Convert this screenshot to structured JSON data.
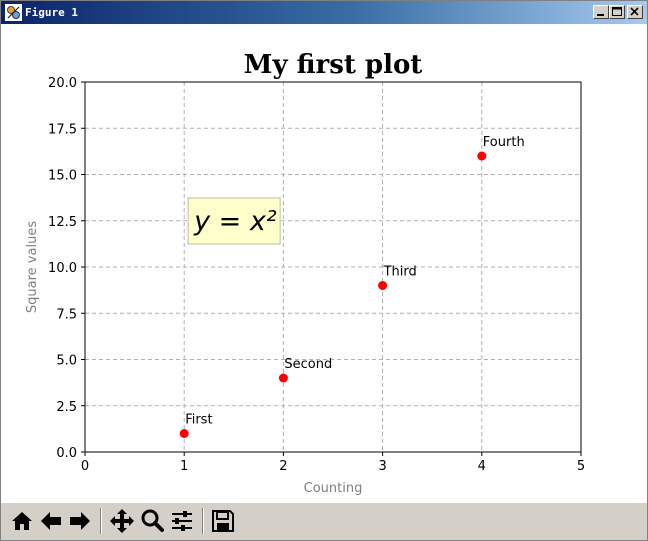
{
  "window": {
    "title": "Figure 1",
    "buttons": [
      "minimize",
      "maximize",
      "close"
    ]
  },
  "chart_data": {
    "type": "scatter",
    "title": "My first plot",
    "xlabel": "Counting",
    "ylabel": "Square values",
    "xlim": [
      0,
      5
    ],
    "ylim": [
      0,
      20
    ],
    "xticks": [
      "0",
      "1",
      "2",
      "3",
      "4",
      "5"
    ],
    "yticks": [
      "0.0",
      "2.5",
      "5.0",
      "7.5",
      "10.0",
      "12.5",
      "15.0",
      "17.5",
      "20.0"
    ],
    "grid": true,
    "points": [
      {
        "x": 1,
        "y": 1,
        "label": "First"
      },
      {
        "x": 2,
        "y": 4,
        "label": "Second"
      },
      {
        "x": 3,
        "y": 9,
        "label": "Third"
      },
      {
        "x": 4,
        "y": 16,
        "label": "Fourth"
      }
    ],
    "point_color": "#ff0000",
    "annotation": {
      "x": 1.1,
      "y": 12,
      "text": "y = x²"
    },
    "annotation_box_color": "#ffffcc"
  },
  "toolbar": {
    "icons": [
      "home-icon",
      "back-icon",
      "forward-icon",
      "pan-icon",
      "zoom-icon",
      "configure-icon",
      "save-icon"
    ]
  }
}
